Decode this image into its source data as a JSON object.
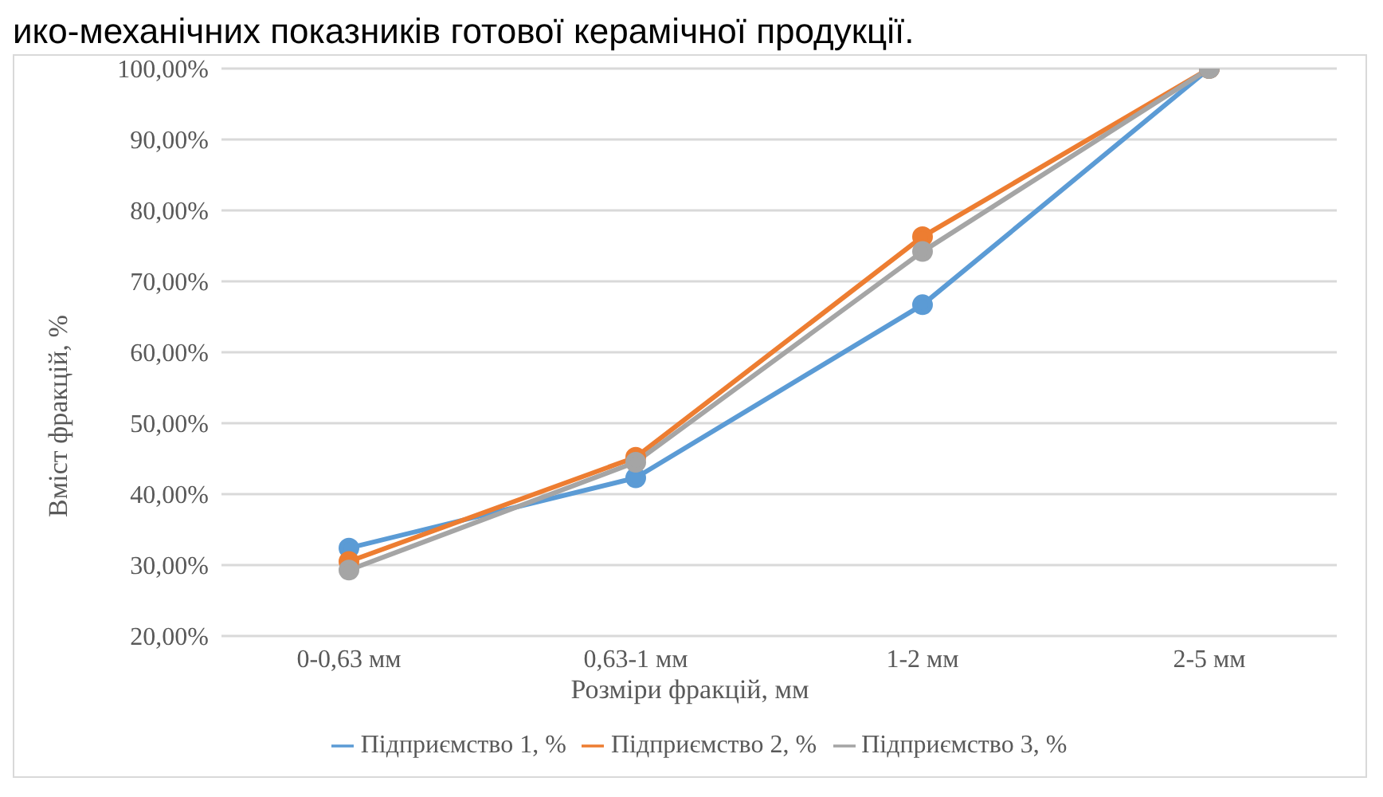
{
  "chart_data": {
    "type": "line",
    "annotations": [
      "ико-механічних показників готової керамічної продукції."
    ],
    "xlabel": "Розміри фракцій, мм",
    "ylabel": "Вміст фракцій, %",
    "categories": [
      "0-0,63 мм",
      "0,63-1 мм",
      "1-2 мм",
      "2-5 мм"
    ],
    "series": [
      {
        "name": "Підприємство 1, %",
        "color": "#5b9bd5",
        "values": [
          32.4,
          42.3,
          66.7,
          100
        ]
      },
      {
        "name": "Підприємство 2, %",
        "color": "#ed7d31",
        "values": [
          30.5,
          45.2,
          76.3,
          100
        ]
      },
      {
        "name": "Підприємство 3, %",
        "color": "#a5a5a5",
        "values": [
          29.3,
          44.5,
          74.2,
          100
        ]
      }
    ],
    "ylim": [
      20,
      100
    ],
    "yticks": [
      {
        "value": 20,
        "label": "20,00%"
      },
      {
        "value": 30,
        "label": "30,00%"
      },
      {
        "value": 40,
        "label": "40,00%"
      },
      {
        "value": 50,
        "label": "50,00%"
      },
      {
        "value": 60,
        "label": "60,00%"
      },
      {
        "value": 70,
        "label": "70,00%"
      },
      {
        "value": 80,
        "label": "80,00%"
      },
      {
        "value": 90,
        "label": "90,00%"
      },
      {
        "value": 100,
        "label": "100,00%"
      }
    ],
    "grid": "y",
    "legend": "bottom",
    "marker": "circle",
    "line_style": "solid"
  }
}
